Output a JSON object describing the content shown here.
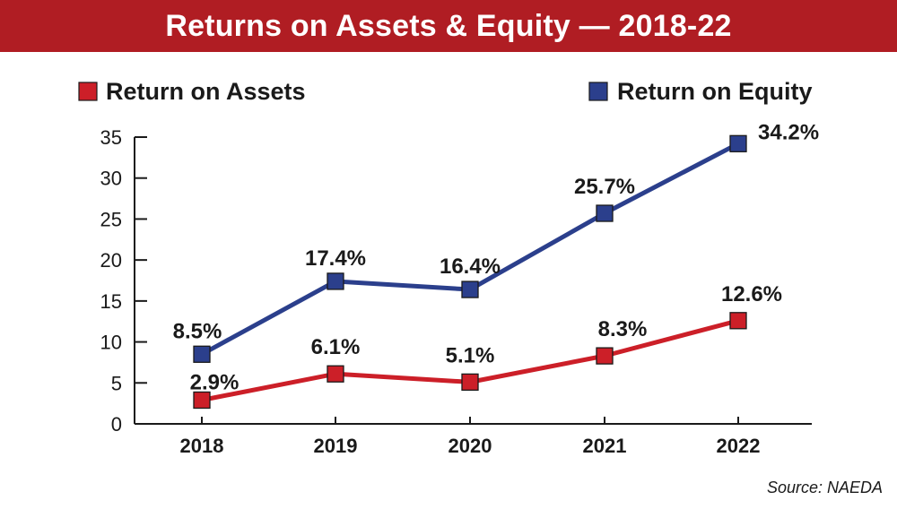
{
  "title": "Returns on Assets & Equity — 2018-22",
  "source": "Source: NAEDA",
  "chart_data": {
    "type": "line",
    "title": "Returns on Assets & Equity — 2018-22",
    "x": [
      "2018",
      "2019",
      "2020",
      "2021",
      "2022"
    ],
    "ylim": [
      0,
      35
    ],
    "yticks": [
      0,
      5,
      10,
      15,
      20,
      25,
      30,
      35
    ],
    "grid": false,
    "legend_position": "top",
    "series": [
      {
        "name": "Return on Assets",
        "color": "#cc1f28",
        "values": [
          2.9,
          6.1,
          5.1,
          8.3,
          12.6
        ],
        "labels": [
          "2.9%",
          "6.1%",
          "5.1%",
          "8.3%",
          "12.6%"
        ]
      },
      {
        "name": "Return on Equity",
        "color": "#2b3f8c",
        "values": [
          8.5,
          17.4,
          16.4,
          25.7,
          34.2
        ],
        "labels": [
          "8.5%",
          "17.4%",
          "16.4%",
          "25.7%",
          "34.2%"
        ]
      }
    ]
  }
}
